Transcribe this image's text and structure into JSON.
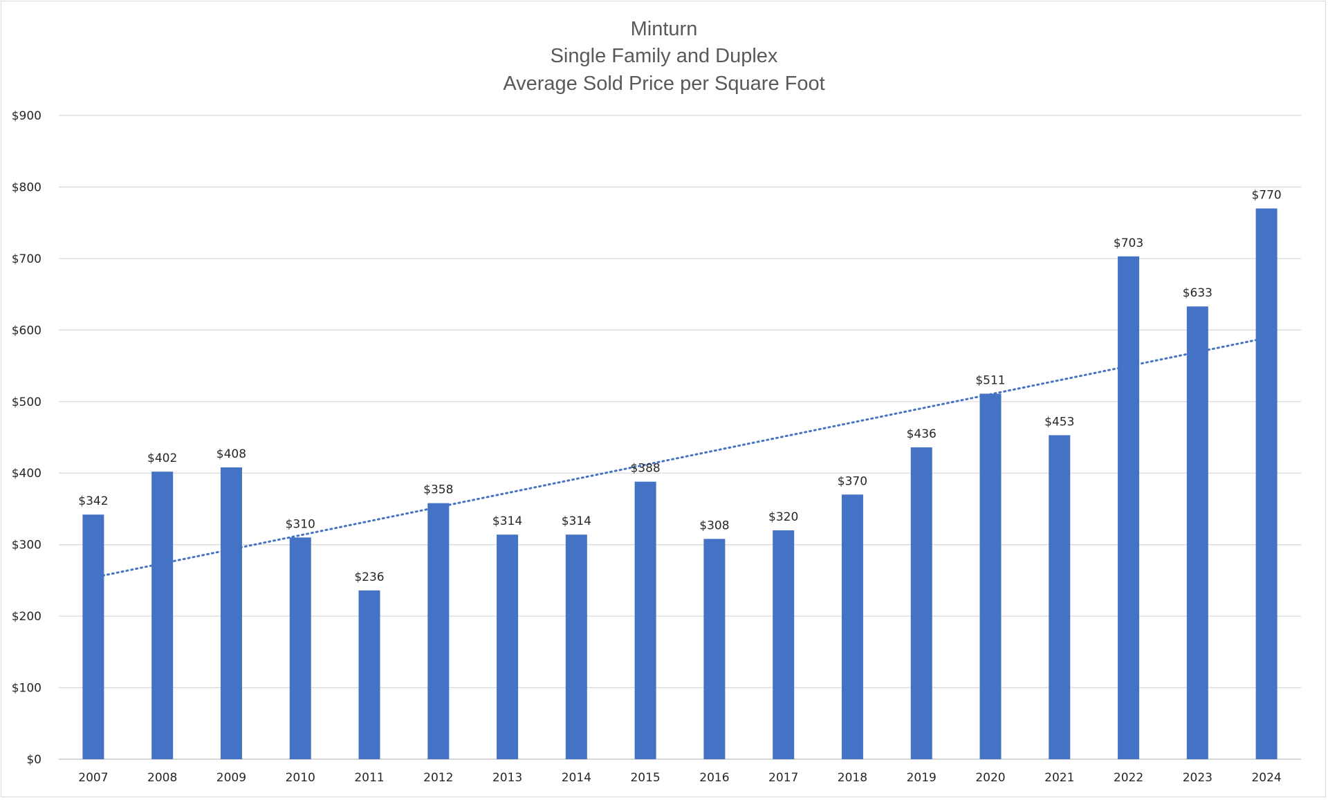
{
  "chart_data": {
    "type": "bar",
    "title_lines": [
      "Minturn",
      "Single Family and Duplex",
      "Average Sold Price per Square Foot"
    ],
    "categories": [
      "2007",
      "2008",
      "2009",
      "2010",
      "2011",
      "2012",
      "2013",
      "2014",
      "2015",
      "2016",
      "2017",
      "2018",
      "2019",
      "2020",
      "2021",
      "2022",
      "2023",
      "2024"
    ],
    "values": [
      342,
      402,
      408,
      310,
      236,
      358,
      314,
      314,
      388,
      308,
      320,
      370,
      436,
      511,
      453,
      703,
      633,
      770
    ],
    "data_labels": [
      "$342",
      "$402",
      "$408",
      "$310",
      "$236",
      "$358",
      "$314",
      "$314",
      "$388",
      "$308",
      "$320",
      "$370",
      "$436",
      "$511",
      "$453",
      "$703",
      "$633",
      "$770"
    ],
    "ylim": [
      0,
      900
    ],
    "yticks": [
      0,
      100,
      200,
      300,
      400,
      500,
      600,
      700,
      800,
      900
    ],
    "ytick_labels": [
      "$0",
      "$100",
      "$200",
      "$300",
      "$400",
      "$500",
      "$600",
      "$700",
      "$800",
      "$900"
    ],
    "xlabel": "",
    "ylabel": "",
    "grid": true,
    "legend": "none",
    "trendline": {
      "type": "linear",
      "style": "dotted",
      "start": {
        "x": "2007",
        "y": 254
      },
      "end": {
        "x": "2024",
        "y": 589
      }
    },
    "colors": {
      "bar": "#4472c4",
      "trendline": "#4472c4",
      "grid": "#d9d9d9",
      "title": "#595959",
      "text": "#262626"
    }
  }
}
